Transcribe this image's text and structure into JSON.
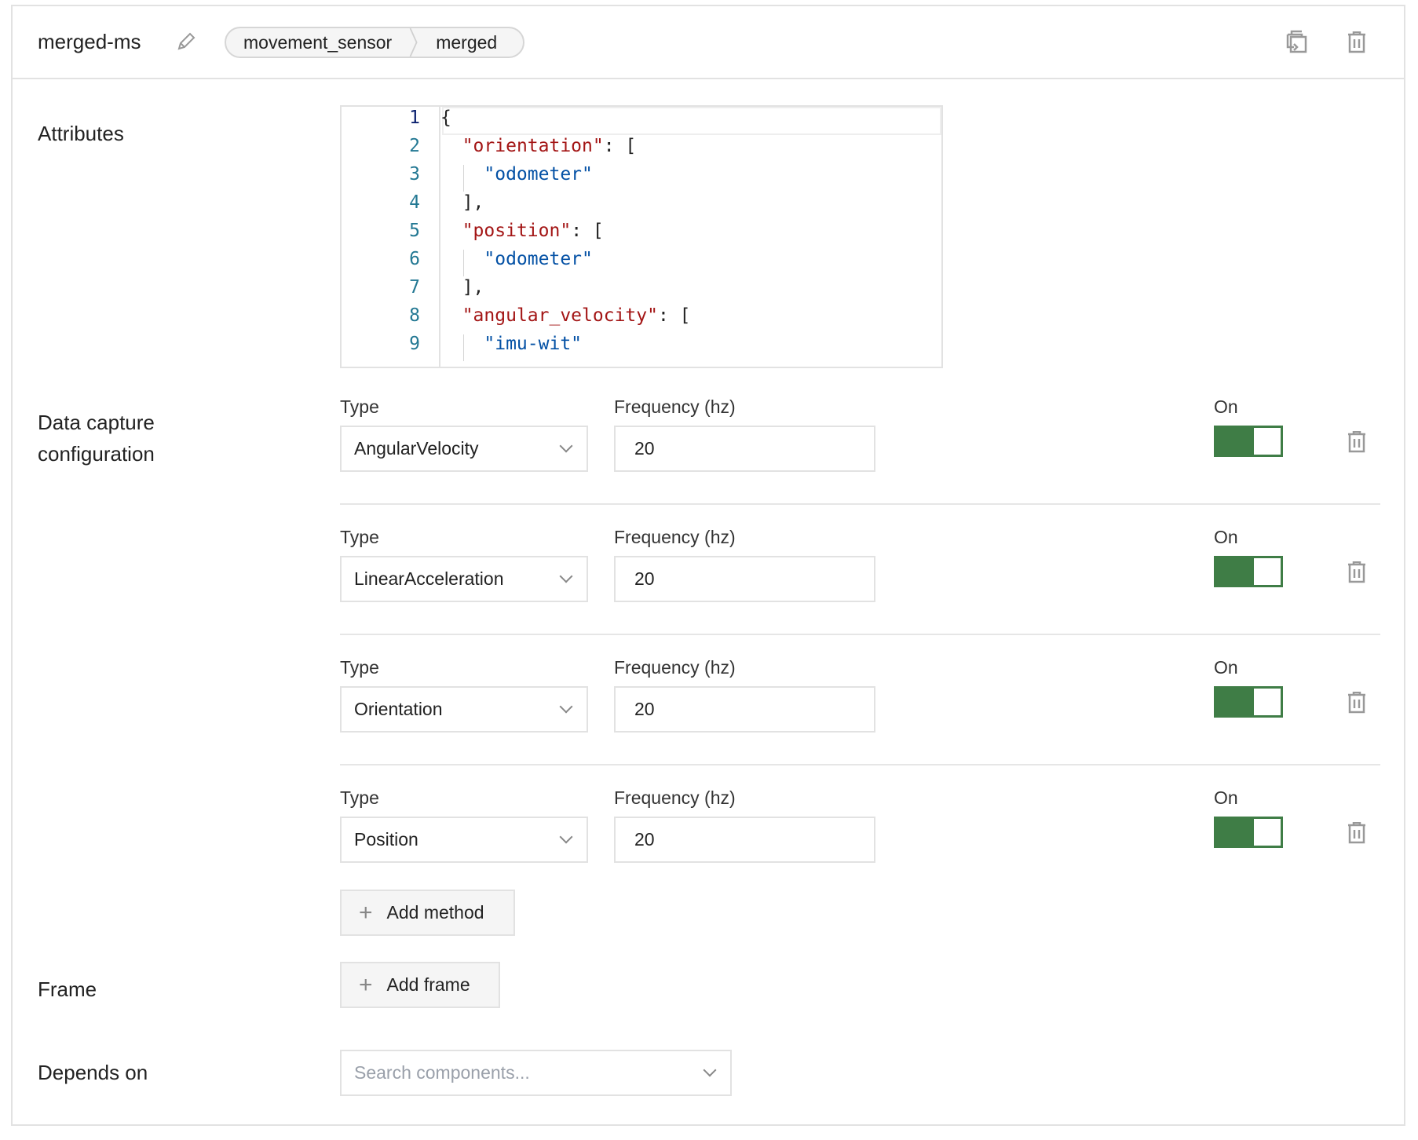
{
  "header": {
    "title": "merged-ms",
    "breadcrumb": [
      "movement_sensor",
      "merged"
    ]
  },
  "attributes": {
    "label": "Attributes",
    "lines": [
      {
        "n": "1",
        "parts": [
          {
            "t": "{",
            "c": "p"
          }
        ]
      },
      {
        "n": "2",
        "parts": [
          {
            "t": "  ",
            "c": "p"
          },
          {
            "t": "\"orientation\"",
            "c": "k"
          },
          {
            "t": ": [",
            "c": "p"
          }
        ]
      },
      {
        "n": "3",
        "parts": [
          {
            "t": "    ",
            "c": "p"
          },
          {
            "t": "\"odometer\"",
            "c": "s"
          }
        ]
      },
      {
        "n": "4",
        "parts": [
          {
            "t": "  ],",
            "c": "p"
          }
        ]
      },
      {
        "n": "5",
        "parts": [
          {
            "t": "  ",
            "c": "p"
          },
          {
            "t": "\"position\"",
            "c": "k"
          },
          {
            "t": ": [",
            "c": "p"
          }
        ]
      },
      {
        "n": "6",
        "parts": [
          {
            "t": "    ",
            "c": "p"
          },
          {
            "t": "\"odometer\"",
            "c": "s"
          }
        ]
      },
      {
        "n": "7",
        "parts": [
          {
            "t": "  ],",
            "c": "p"
          }
        ]
      },
      {
        "n": "8",
        "parts": [
          {
            "t": "  ",
            "c": "p"
          },
          {
            "t": "\"angular_velocity\"",
            "c": "k"
          },
          {
            "t": ": [",
            "c": "p"
          }
        ]
      },
      {
        "n": "9",
        "parts": [
          {
            "t": "    ",
            "c": "p"
          },
          {
            "t": "\"imu-wit\"",
            "c": "s"
          }
        ]
      }
    ]
  },
  "data_capture": {
    "label_line1": "Data capture",
    "label_line2": "configuration",
    "type_label": "Type",
    "frequency_label": "Frequency (hz)",
    "on_label": "On",
    "methods": [
      {
        "type": "AngularVelocity",
        "frequency": "20",
        "on": true
      },
      {
        "type": "LinearAcceleration",
        "frequency": "20",
        "on": true
      },
      {
        "type": "Orientation",
        "frequency": "20",
        "on": true
      },
      {
        "type": "Position",
        "frequency": "20",
        "on": true
      }
    ],
    "add_method_label": "Add method"
  },
  "frame": {
    "label": "Frame",
    "add_frame_label": "Add frame"
  },
  "depends_on": {
    "label": "Depends on",
    "placeholder": "Search components..."
  },
  "colors": {
    "toggle_on": "#3f7d46",
    "json_key": "#a31515",
    "json_string": "#0451a5"
  }
}
